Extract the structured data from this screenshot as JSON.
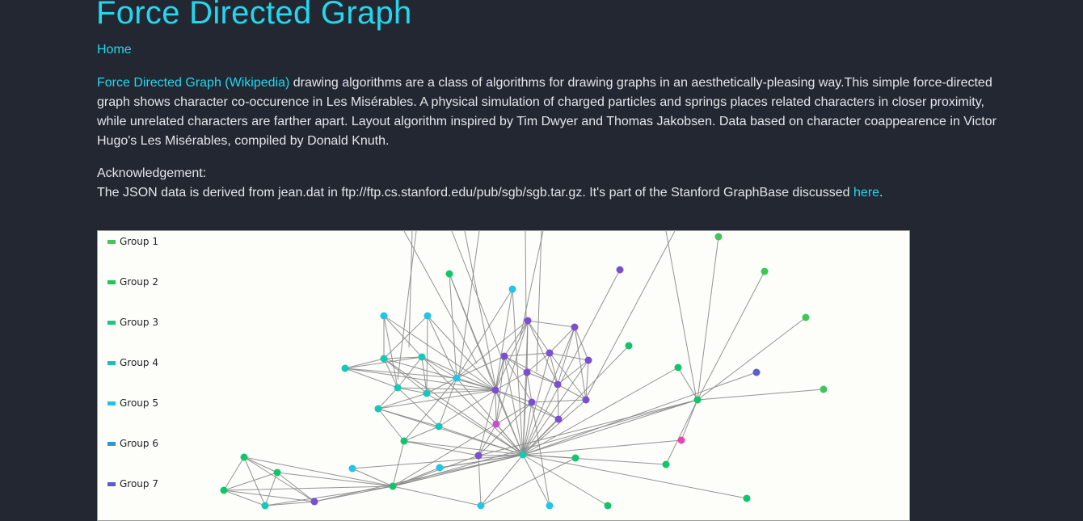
{
  "header": {
    "title": "Force Directed Graph",
    "home_label": "Home"
  },
  "intro": {
    "link_text": "Force Directed Graph (Wikipedia)",
    "text": " drawing algorithms are a class of algorithms for drawing graphs in an aesthetically-pleasing way.This simple force-directed graph shows character co-occurence in Les Misérables. A physical simulation of charged particles and springs places related characters in closer proximity, while unrelated characters are farther apart. Layout algorithm inspired by Tim Dwyer and Thomas Jakobsen. Data based on character coappearence in Victor Hugo's Les Misérables, compiled by Donald Knuth."
  },
  "acknowledgement": {
    "heading": "Acknowledgement:",
    "text": "The JSON data is derived from jean.dat in ftp://ftp.cs.stanford.edu/pub/sgb/sgb.tar.gz. It's part of the Stanford GraphBase discussed ",
    "link_text": "here",
    "suffix": "."
  },
  "graph": {
    "legend": [
      {
        "label": "Group 1",
        "color": "#4cc35a"
      },
      {
        "label": "Group 2",
        "color": "#1fc45e"
      },
      {
        "label": "Group 3",
        "color": "#14c885"
      },
      {
        "label": "Group 4",
        "color": "#13c5b4"
      },
      {
        "label": "Group 5",
        "color": "#1ec6dd"
      },
      {
        "label": "Group 6",
        "color": "#3394d6"
      },
      {
        "label": "Group 7",
        "color": "#5a5ecb"
      }
    ],
    "colors": {
      "green": "#3dc75a",
      "emerald": "#12c46c",
      "teal": "#16c8b5",
      "cyan": "#22c5e2",
      "purple": "#7b4fcf",
      "magenta": "#c74fcf",
      "pink": "#e946b1",
      "blue": "#5a5ecb",
      "link": "#888888"
    }
  }
}
